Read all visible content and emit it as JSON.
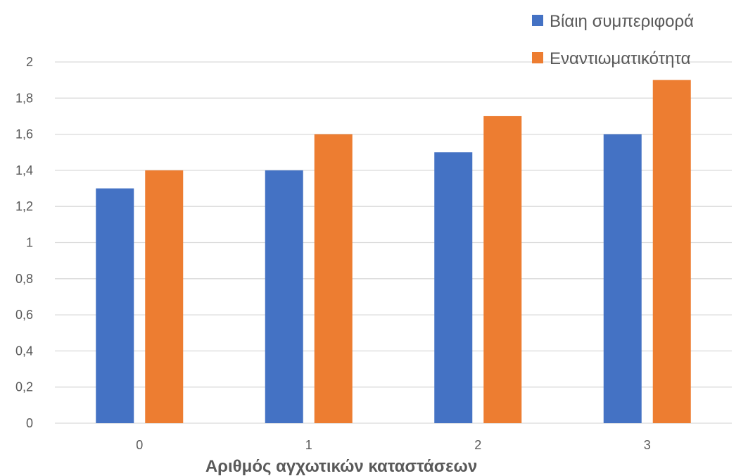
{
  "chart_data": {
    "type": "bar",
    "title": "",
    "xlabel": "Αριθμός αγχωτικών καταστάσεων",
    "ylabel": "",
    "categories": [
      "0",
      "1",
      "2",
      "3"
    ],
    "series": [
      {
        "name": "Βίαιη συμπεριφορά",
        "color": "#4472C4",
        "values": [
          1.3,
          1.4,
          1.5,
          1.6
        ]
      },
      {
        "name": "Εναντιωματικότητα",
        "color": "#ED7D31",
        "values": [
          1.4,
          1.6,
          1.7,
          1.9
        ]
      }
    ],
    "ylim": [
      0,
      2
    ],
    "yticks": [
      "0",
      "0,2",
      "0,4",
      "0,6",
      "0,8",
      "1",
      "1,2",
      "1,4",
      "1,6",
      "1,8",
      "2"
    ],
    "grid": true,
    "gridColor": "#D9D9D9",
    "legend": "top-right"
  }
}
